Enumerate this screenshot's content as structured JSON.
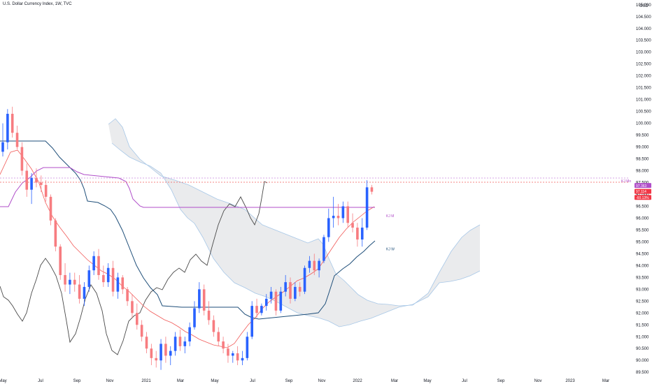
{
  "header": {
    "title": "U.S. Dollar Currency Index, 1W, TVC"
  },
  "colors": {
    "up": "#2962ff",
    "down": "#f77c80",
    "background": "#ffffff"
  },
  "chart_data": {
    "type": "candlestick",
    "currency": "USD",
    "x_tick_labels": [
      "May",
      "Jul",
      "Sep",
      "Nov",
      "2021",
      "Mar",
      "May",
      "Jul",
      "Sep",
      "Nov",
      "2022",
      "Mar",
      "May",
      "Jul",
      "Sep",
      "Nov",
      "2023",
      "Mar"
    ],
    "y_tick_labels": [
      "89.500",
      "90.000",
      "90.500",
      "91.000",
      "91.500",
      "92.000",
      "92.500",
      "93.000",
      "93.500",
      "94.000",
      "94.500",
      "95.000",
      "95.500",
      "96.000",
      "96.500",
      "97.000",
      "97.500",
      "98.000",
      "98.500",
      "99.000",
      "99.500",
      "100.000",
      "100.500",
      "101.000",
      "101.500",
      "102.000",
      "102.500",
      "103.000",
      "103.500",
      "104.000",
      "104.500",
      "105.000"
    ],
    "ylim": [
      89.3,
      105.2
    ],
    "price_tags": [
      {
        "label": "97.363",
        "value": 97.363,
        "color": "#b04ec9"
      },
      {
        "label": "97.114",
        "value": 97.114,
        "color": "#f23645"
      },
      {
        "label": "-60.13%",
        "value": 96.92,
        "color": "#f23645"
      }
    ],
    "annotations": [
      {
        "text": "KJ M",
        "value": 96.1,
        "color": "#b04ec9"
      },
      {
        "text": "KJ W",
        "value": 94.7,
        "color": "#1e4e79"
      }
    ],
    "note_top_right": "KJ Mo",
    "candles": [
      {
        "o": 98.8,
        "h": 100.0,
        "l": 98.6,
        "c": 99.2
      },
      {
        "o": 99.2,
        "h": 100.6,
        "l": 98.9,
        "c": 100.4
      },
      {
        "o": 100.4,
        "h": 100.7,
        "l": 99.4,
        "c": 99.6
      },
      {
        "o": 99.6,
        "h": 99.9,
        "l": 98.9,
        "c": 99.0
      },
      {
        "o": 99.0,
        "h": 99.2,
        "l": 97.8,
        "c": 98.0
      },
      {
        "o": 98.0,
        "h": 98.3,
        "l": 96.9,
        "c": 97.2
      },
      {
        "o": 97.2,
        "h": 97.9,
        "l": 96.6,
        "c": 97.7
      },
      {
        "o": 97.7,
        "h": 98.1,
        "l": 97.3,
        "c": 97.5
      },
      {
        "o": 97.5,
        "h": 97.8,
        "l": 97.1,
        "c": 97.4
      },
      {
        "o": 97.4,
        "h": 97.6,
        "l": 96.7,
        "c": 96.9
      },
      {
        "o": 96.9,
        "h": 97.0,
        "l": 95.7,
        "c": 95.9
      },
      {
        "o": 95.9,
        "h": 96.0,
        "l": 94.6,
        "c": 94.8
      },
      {
        "o": 94.8,
        "h": 94.9,
        "l": 93.4,
        "c": 93.6
      },
      {
        "o": 93.6,
        "h": 94.1,
        "l": 92.9,
        "c": 93.2
      },
      {
        "o": 93.2,
        "h": 93.7,
        "l": 92.8,
        "c": 93.4
      },
      {
        "o": 93.4,
        "h": 93.7,
        "l": 92.9,
        "c": 93.2
      },
      {
        "o": 93.2,
        "h": 93.6,
        "l": 92.4,
        "c": 92.6
      },
      {
        "o": 92.6,
        "h": 93.3,
        "l": 92.3,
        "c": 93.1
      },
      {
        "o": 93.1,
        "h": 94.0,
        "l": 92.9,
        "c": 93.8
      },
      {
        "o": 93.8,
        "h": 94.6,
        "l": 93.6,
        "c": 94.4
      },
      {
        "o": 94.4,
        "h": 94.7,
        "l": 93.4,
        "c": 93.6
      },
      {
        "o": 93.6,
        "h": 94.0,
        "l": 93.1,
        "c": 93.3
      },
      {
        "o": 93.3,
        "h": 94.1,
        "l": 93.1,
        "c": 93.9
      },
      {
        "o": 93.9,
        "h": 94.2,
        "l": 92.7,
        "c": 92.9
      },
      {
        "o": 92.9,
        "h": 93.7,
        "l": 92.6,
        "c": 93.5
      },
      {
        "o": 93.5,
        "h": 93.6,
        "l": 92.8,
        "c": 93.0
      },
      {
        "o": 93.0,
        "h": 93.1,
        "l": 92.3,
        "c": 92.5
      },
      {
        "o": 92.5,
        "h": 92.8,
        "l": 91.8,
        "c": 92.0
      },
      {
        "o": 92.0,
        "h": 92.4,
        "l": 91.3,
        "c": 91.5
      },
      {
        "o": 91.5,
        "h": 91.7,
        "l": 90.8,
        "c": 91.0
      },
      {
        "o": 91.0,
        "h": 91.2,
        "l": 90.3,
        "c": 90.5
      },
      {
        "o": 90.5,
        "h": 90.7,
        "l": 89.8,
        "c": 90.1
      },
      {
        "o": 90.1,
        "h": 90.4,
        "l": 89.7,
        "c": 90.0
      },
      {
        "o": 90.0,
        "h": 90.9,
        "l": 89.6,
        "c": 90.7
      },
      {
        "o": 90.7,
        "h": 91.0,
        "l": 89.9,
        "c": 90.2
      },
      {
        "o": 90.2,
        "h": 90.6,
        "l": 89.8,
        "c": 90.4
      },
      {
        "o": 90.4,
        "h": 91.2,
        "l": 90.2,
        "c": 91.0
      },
      {
        "o": 91.0,
        "h": 91.3,
        "l": 90.4,
        "c": 90.6
      },
      {
        "o": 90.6,
        "h": 91.0,
        "l": 90.3,
        "c": 90.8
      },
      {
        "o": 90.8,
        "h": 91.6,
        "l": 90.6,
        "c": 91.4
      },
      {
        "o": 91.4,
        "h": 92.5,
        "l": 91.3,
        "c": 92.2
      },
      {
        "o": 92.2,
        "h": 93.3,
        "l": 92.0,
        "c": 93.0
      },
      {
        "o": 93.0,
        "h": 93.2,
        "l": 91.9,
        "c": 92.1
      },
      {
        "o": 92.1,
        "h": 92.5,
        "l": 91.5,
        "c": 91.7
      },
      {
        "o": 91.7,
        "h": 91.9,
        "l": 91.0,
        "c": 91.2
      },
      {
        "o": 91.2,
        "h": 91.4,
        "l": 90.6,
        "c": 90.8
      },
      {
        "o": 90.8,
        "h": 91.0,
        "l": 90.3,
        "c": 90.5
      },
      {
        "o": 90.5,
        "h": 90.7,
        "l": 89.9,
        "c": 90.2
      },
      {
        "o": 90.2,
        "h": 90.4,
        "l": 89.9,
        "c": 90.3
      },
      {
        "o": 90.3,
        "h": 90.6,
        "l": 89.8,
        "c": 90.0
      },
      {
        "o": 90.0,
        "h": 90.4,
        "l": 89.8,
        "c": 90.1
      },
      {
        "o": 90.1,
        "h": 91.2,
        "l": 90.0,
        "c": 91.0
      },
      {
        "o": 91.0,
        "h": 92.5,
        "l": 90.9,
        "c": 92.3
      },
      {
        "o": 92.3,
        "h": 92.6,
        "l": 91.8,
        "c": 92.0
      },
      {
        "o": 92.0,
        "h": 92.4,
        "l": 91.9,
        "c": 92.3
      },
      {
        "o": 92.3,
        "h": 92.8,
        "l": 92.1,
        "c": 92.6
      },
      {
        "o": 92.6,
        "h": 93.1,
        "l": 92.4,
        "c": 92.9
      },
      {
        "o": 92.9,
        "h": 93.0,
        "l": 91.9,
        "c": 92.1
      },
      {
        "o": 92.1,
        "h": 93.1,
        "l": 92.0,
        "c": 92.9
      },
      {
        "o": 92.9,
        "h": 93.6,
        "l": 92.7,
        "c": 93.3
      },
      {
        "o": 93.3,
        "h": 93.5,
        "l": 92.4,
        "c": 92.6
      },
      {
        "o": 92.6,
        "h": 93.3,
        "l": 92.5,
        "c": 93.1
      },
      {
        "o": 93.1,
        "h": 93.3,
        "l": 92.7,
        "c": 92.9
      },
      {
        "o": 92.9,
        "h": 94.0,
        "l": 92.8,
        "c": 93.9
      },
      {
        "o": 93.9,
        "h": 94.4,
        "l": 93.7,
        "c": 94.2
      },
      {
        "o": 94.2,
        "h": 94.5,
        "l": 93.6,
        "c": 93.8
      },
      {
        "o": 93.8,
        "h": 94.3,
        "l": 93.5,
        "c": 94.2
      },
      {
        "o": 94.2,
        "h": 95.3,
        "l": 94.1,
        "c": 95.2
      },
      {
        "o": 95.2,
        "h": 96.4,
        "l": 95.0,
        "c": 96.0
      },
      {
        "o": 96.0,
        "h": 96.9,
        "l": 95.6,
        "c": 96.1
      },
      {
        "o": 96.1,
        "h": 96.6,
        "l": 95.7,
        "c": 96.0
      },
      {
        "o": 96.0,
        "h": 96.7,
        "l": 95.8,
        "c": 96.5
      },
      {
        "o": 96.5,
        "h": 96.7,
        "l": 95.6,
        "c": 95.8
      },
      {
        "o": 95.8,
        "h": 96.2,
        "l": 95.4,
        "c": 95.6
      },
      {
        "o": 95.6,
        "h": 95.8,
        "l": 94.8,
        "c": 95.1
      },
      {
        "o": 95.1,
        "h": 96.0,
        "l": 94.8,
        "c": 95.6
      },
      {
        "o": 95.6,
        "h": 97.6,
        "l": 95.5,
        "c": 97.3
      },
      {
        "o": 97.3,
        "h": 97.4,
        "l": 97.0,
        "c": 97.114
      }
    ]
  }
}
